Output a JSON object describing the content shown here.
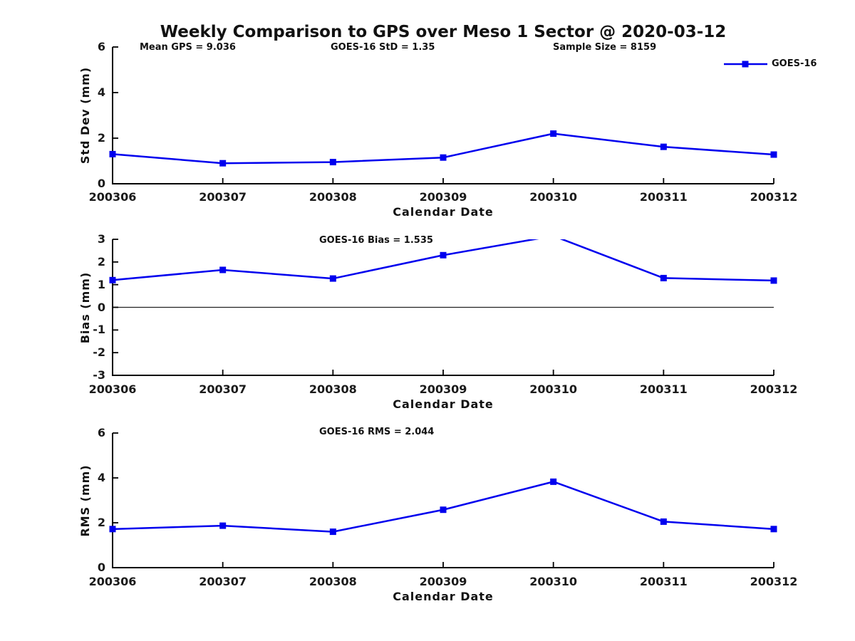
{
  "figure": {
    "title": "Weekly Comparison to GPS over Meso 1 Sector @ 2020-03-12"
  },
  "chart_data": [
    {
      "type": "line",
      "panel": "std-dev",
      "annotations": [
        "Mean GPS = 9.036",
        "GOES-16 StD = 1.35",
        "Sample Size = 8159"
      ],
      "categories": [
        "200306",
        "200307",
        "200308",
        "200309",
        "200310",
        "200311",
        "200312"
      ],
      "series": [
        {
          "name": "GOES-16",
          "color": "#0000ee",
          "marker": "square",
          "values": [
            1.3,
            0.9,
            0.95,
            1.15,
            2.2,
            1.62,
            1.28
          ]
        }
      ],
      "xlabel": "Calendar Date",
      "ylabel": "Std Dev (mm)",
      "ylim": [
        0,
        6
      ],
      "yticks": [
        0,
        2,
        4,
        6
      ],
      "grid": false,
      "zero_line": false,
      "legend": {
        "show": true,
        "position": "upper-right"
      }
    },
    {
      "type": "line",
      "panel": "bias",
      "annotations": [
        "GOES-16 Bias  = 1.535"
      ],
      "categories": [
        "200306",
        "200307",
        "200308",
        "200309",
        "200310",
        "200311",
        "200312"
      ],
      "series": [
        {
          "name": "GOES-16",
          "color": "#0000ee",
          "marker": "square",
          "values": [
            1.2,
            1.65,
            1.27,
            2.3,
            3.15,
            1.29,
            1.18
          ]
        }
      ],
      "xlabel": "Calendar Date",
      "ylabel": "Bias (mm)",
      "ylim": [
        -3,
        3
      ],
      "yticks": [
        3,
        2,
        1,
        0,
        -1,
        -2,
        -3
      ],
      "grid": false,
      "zero_line": true,
      "legend": {
        "show": false
      }
    },
    {
      "type": "line",
      "panel": "rms",
      "annotations": [
        "GOES-16 RMS = 2.044"
      ],
      "categories": [
        "200306",
        "200307",
        "200308",
        "200309",
        "200310",
        "200311",
        "200312"
      ],
      "series": [
        {
          "name": "GOES-16",
          "color": "#0000ee",
          "marker": "square",
          "values": [
            1.72,
            1.87,
            1.6,
            2.58,
            3.83,
            2.05,
            1.72
          ]
        }
      ],
      "xlabel": "Calendar Date",
      "ylabel": "RMS (mm)",
      "ylim": [
        0,
        6
      ],
      "yticks": [
        0,
        2,
        4,
        6
      ],
      "grid": false,
      "zero_line": false,
      "legend": {
        "show": false
      }
    }
  ]
}
